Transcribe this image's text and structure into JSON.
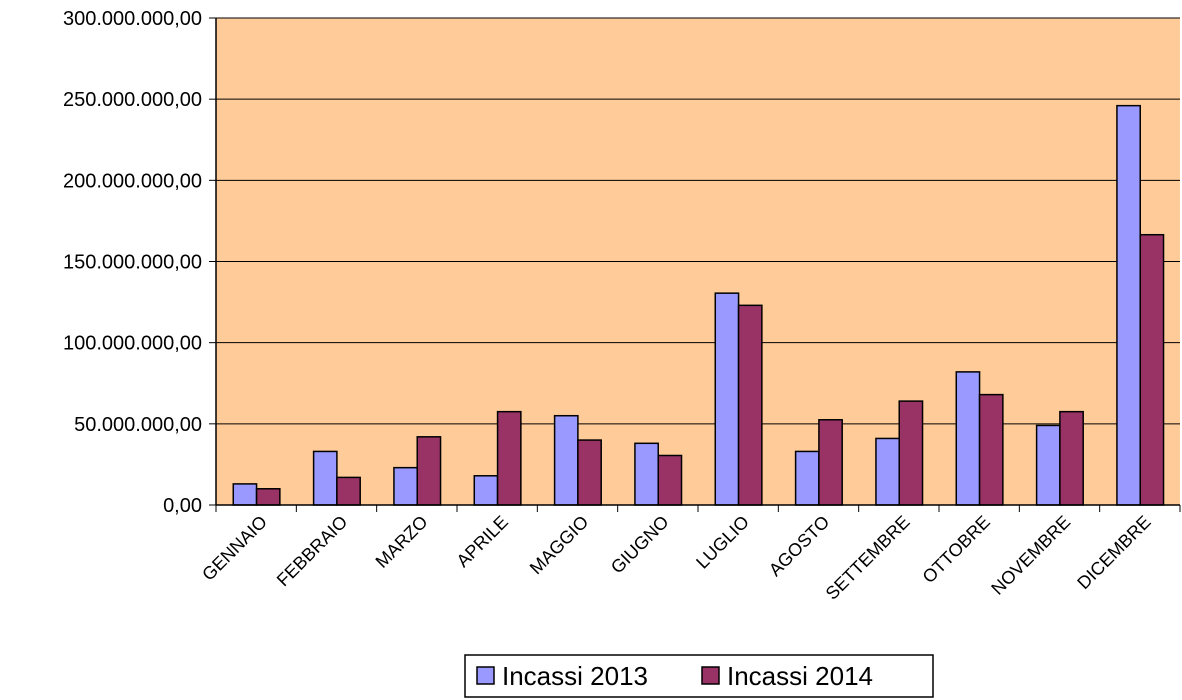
{
  "chart_data": {
    "type": "bar",
    "title": "",
    "xlabel": "",
    "ylabel": "",
    "categories": [
      "GENNAIO",
      "FEBBRAIO",
      "MARZO",
      "APRILE",
      "MAGGIO",
      "GIUGNO",
      "LUGLIO",
      "AGOSTO",
      "SETTEMBRE",
      "OTTOBRE",
      "NOVEMBRE",
      "DICEMBRE"
    ],
    "series": [
      {
        "name": "Incassi 2013",
        "color": "#9999ff",
        "values": [
          13000000,
          33000000,
          23000000,
          18000000,
          55000000,
          38000000,
          130500000,
          33000000,
          41000000,
          82000000,
          49000000,
          246000000
        ]
      },
      {
        "name": "Incassi 2014",
        "color": "#993366",
        "values": [
          10000000,
          17000000,
          42000000,
          57500000,
          40000000,
          30500000,
          123000000,
          52500000,
          64000000,
          68000000,
          57500000,
          166500000
        ]
      }
    ],
    "ylim": [
      0,
      300000000
    ],
    "ytick_values": [
      0,
      50000000,
      100000000,
      150000000,
      200000000,
      250000000,
      300000000
    ],
    "ytick_labels": [
      "0,00",
      "50.000.000,00",
      "100.000.000,00",
      "150.000.000,00",
      "200.000.000,00",
      "250.000.000,00",
      "300.000.000,00"
    ],
    "plot_background": "#ffcc99",
    "grid": true,
    "legend_position": "bottom-center"
  }
}
